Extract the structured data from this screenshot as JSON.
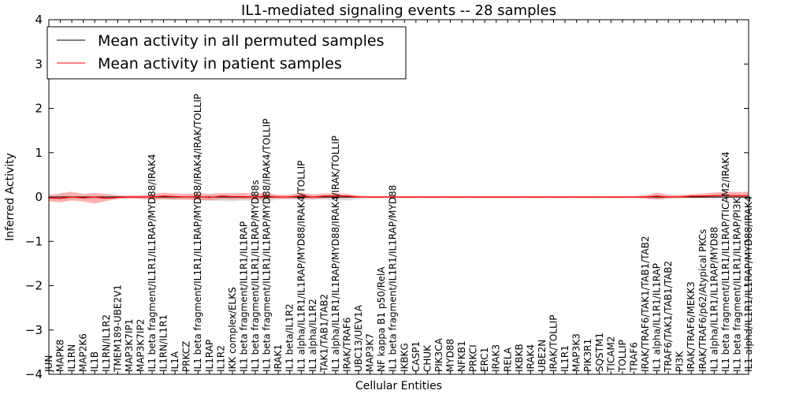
{
  "chart_data": {
    "type": "line",
    "title": "IL1-mediated signaling events -- 28 samples",
    "xlabel": "Cellular Entities",
    "ylabel": "Inferred Activity",
    "ylim": [
      -4,
      4
    ],
    "yticks": [
      -4,
      -3,
      -2,
      -1,
      0,
      1,
      2,
      3,
      4
    ],
    "ytick_labels": [
      "−4",
      "−3",
      "−2",
      "−1",
      "0",
      "1",
      "2",
      "3",
      "4"
    ],
    "legend": {
      "position": "top-left",
      "entries": [
        {
          "label": "Mean activity in all permuted samples",
          "color": "#000000"
        },
        {
          "label": "Mean activity in patient samples",
          "color": "#ff0000"
        }
      ]
    },
    "categories": [
      "JUN",
      "MAPK8",
      "IL1RN",
      "MAP2K6",
      "IL1B",
      "IL1RN/IL1R2",
      "TMEM189-UBE2V1",
      "MAP3K7IP1",
      "MAP3K7IP2",
      "IL1 beta fragment/IL1R1/IL1RAP/MYD88/IRAK4",
      "IL1RN/IL1R1",
      "IL1A",
      "PRKCZ",
      "IL1 beta fragment/IL1R1/IL1RAP/MYD88/IRAK4/IRAK/TOLLIP",
      "IL1RAP",
      "IL1R2",
      "IKK complex/ELKS",
      "IL1 beta fragment/IL1R1/IL1RAP",
      "IL1 beta fragment/IL1R1/IL1RAP/MYD88s",
      "IL1 beta fragment/IL1R1/IL1RAP/MYD88/IRAK4/TOLLIP",
      "IRAK1",
      "IL1 beta/IL1R2",
      "IL1 alpha/IL1R1/IL1RAP/MYD88/IRAK4/TOLLIP",
      "IL1 alpha/IL1R2",
      "TAK1/TAB1/TAB2",
      "IL1 alpha/IL1R1/IL1RAP/MYD88/IRAK4/IRAK/TOLLIP",
      "IRAK/TRAF6",
      "UBC13/UEV1A",
      "MAP3K7",
      "NF kappa B1 p50/RelA",
      "IL1 beta fragment/IL1R1/IL1RAP/MYD88",
      "IKBKG",
      "CASP1",
      "CHUK",
      "PIK3CA",
      "MYD88",
      "NFKB1",
      "PRKCI",
      "ERC1",
      "IRAK3",
      "RELA",
      "IKBKB",
      "IRAK4",
      "UBE2N",
      "IRAK/TOLLIP",
      "IL1R1",
      "MAP3K3",
      "PIK3R1",
      "SQSTM1",
      "TICAM2",
      "TOLLIP",
      "TRAF6",
      "IRAK/TRAF6/TAK1/TAB1/TAB2",
      "IL1 alpha/IL1R1/IL1RAP",
      "TRAF6/TAK1/TAB1/TAB2",
      "PI3K",
      "IRAK/TRAF6/MEKK3",
      "IRAK/TRAF6/p62/Atypical PKCs",
      "IL1 alpha/IL1R1/IL1RAP/MYD88",
      "IL1 beta fragment/IL1R1/IL1RAP/TICAM2/IRAK4",
      "IL1 beta fragment/IL1R1/IL1RAP/PI3K",
      "IL1 alpha/IL1R1/IL1RAP/MYD88/IRAK4"
    ],
    "series": [
      {
        "name": "Mean activity in all permuted samples",
        "color": "#000000",
        "values": [
          0,
          0,
          0,
          0,
          0,
          0,
          0,
          0,
          0,
          0,
          0,
          0,
          0,
          0,
          0,
          0,
          0,
          0,
          0,
          0,
          0,
          0,
          0,
          0,
          0,
          0,
          0,
          0,
          0,
          0,
          0,
          0,
          0,
          0,
          0,
          0,
          0,
          0,
          0,
          0,
          0,
          0,
          0,
          0,
          0,
          0,
          0,
          0,
          0,
          0,
          0,
          0,
          0,
          0,
          0,
          0,
          0,
          0,
          0,
          0,
          0,
          0
        ],
        "band_upper": [
          0.02,
          0.03,
          0.03,
          0.02,
          0.03,
          0.02,
          0.02,
          0.02,
          0.02,
          0.02,
          0.02,
          0.02,
          0.02,
          0.02,
          0.02,
          0.02,
          0.02,
          0.02,
          0.02,
          0.02,
          0.02,
          0.02,
          0.02,
          0.02,
          0.02,
          0.02,
          0.02,
          0.02,
          0.02,
          0.02,
          0.02,
          0.02,
          0.02,
          0.02,
          0.02,
          0.02,
          0.02,
          0.02,
          0.02,
          0.02,
          0.02,
          0.02,
          0.02,
          0.02,
          0.02,
          0.02,
          0.02,
          0.02,
          0.02,
          0.02,
          0.02,
          0.02,
          0.02,
          0.02,
          0.02,
          0.02,
          0.02,
          0.02,
          0.02,
          0.02,
          0.02,
          0.02
        ],
        "band_lower": [
          -0.05,
          -0.07,
          -0.06,
          -0.05,
          -0.06,
          -0.04,
          -0.03,
          -0.03,
          -0.04,
          -0.05,
          -0.06,
          -0.06,
          -0.05,
          -0.07,
          -0.08,
          -0.09,
          -0.1,
          -0.08,
          -0.09,
          -0.1,
          -0.06,
          -0.05,
          -0.07,
          -0.06,
          -0.06,
          -0.07,
          -0.08,
          -0.05,
          -0.03,
          -0.03,
          -0.03,
          -0.03,
          -0.03,
          -0.03,
          -0.03,
          -0.03,
          -0.03,
          -0.03,
          -0.03,
          -0.03,
          -0.03,
          -0.03,
          -0.03,
          -0.03,
          -0.03,
          -0.03,
          -0.03,
          -0.03,
          -0.04,
          -0.03,
          -0.03,
          -0.03,
          -0.04,
          -0.05,
          -0.04,
          -0.03,
          -0.03,
          -0.03,
          -0.03,
          -0.02,
          -0.02,
          -0.02
        ]
      },
      {
        "name": "Mean activity in patient samples",
        "color": "#ff0000",
        "values": [
          -0.02,
          -0.03,
          0.0,
          -0.02,
          0.0,
          -0.03,
          -0.01,
          0.0,
          0.0,
          0.0,
          0.02,
          0.01,
          0.0,
          0.01,
          -0.01,
          0.02,
          0.01,
          0.01,
          0.0,
          0.02,
          0.0,
          0.0,
          0.03,
          0.0,
          0.02,
          0.03,
          0.02,
          0.0,
          0.0,
          0.0,
          0.0,
          0.0,
          0.0,
          0.0,
          0.0,
          0.0,
          0.0,
          0.0,
          0.0,
          0.0,
          0.0,
          0.0,
          0.0,
          0.0,
          0.0,
          0.0,
          0.0,
          0.0,
          0.0,
          0.0,
          0.0,
          0.0,
          0.0,
          0.02,
          0.0,
          0.0,
          0.02,
          0.02,
          0.03,
          0.04,
          0.03,
          0.03
        ],
        "band_upper": [
          0.05,
          0.08,
          0.12,
          0.07,
          0.09,
          0.07,
          0.04,
          0.03,
          0.04,
          0.06,
          0.1,
          0.08,
          0.07,
          0.08,
          0.07,
          0.09,
          0.08,
          0.09,
          0.07,
          0.09,
          0.05,
          0.05,
          0.1,
          0.06,
          0.08,
          0.09,
          0.07,
          0.03,
          0.02,
          0.02,
          0.02,
          0.02,
          0.02,
          0.02,
          0.02,
          0.02,
          0.02,
          0.02,
          0.02,
          0.02,
          0.02,
          0.02,
          0.02,
          0.02,
          0.02,
          0.02,
          0.02,
          0.02,
          0.02,
          0.02,
          0.02,
          0.02,
          0.04,
          0.1,
          0.05,
          0.05,
          0.06,
          0.08,
          0.1,
          0.12,
          0.11,
          0.12
        ],
        "band_lower": [
          -0.1,
          -0.12,
          -0.08,
          -0.1,
          -0.15,
          -0.09,
          -0.05,
          -0.03,
          -0.04,
          -0.06,
          -0.05,
          -0.06,
          -0.06,
          -0.07,
          -0.08,
          -0.05,
          -0.06,
          -0.05,
          -0.06,
          -0.04,
          -0.04,
          -0.04,
          -0.04,
          -0.05,
          -0.03,
          -0.03,
          -0.03,
          -0.02,
          -0.02,
          -0.02,
          -0.02,
          -0.02,
          -0.02,
          -0.02,
          -0.02,
          -0.02,
          -0.02,
          -0.02,
          -0.02,
          -0.02,
          -0.02,
          -0.02,
          -0.02,
          -0.02,
          -0.02,
          -0.02,
          -0.02,
          -0.02,
          -0.02,
          -0.02,
          -0.02,
          -0.02,
          -0.03,
          -0.06,
          -0.03,
          -0.02,
          -0.02,
          -0.02,
          -0.02,
          -0.02,
          -0.02,
          -0.02
        ]
      }
    ]
  }
}
